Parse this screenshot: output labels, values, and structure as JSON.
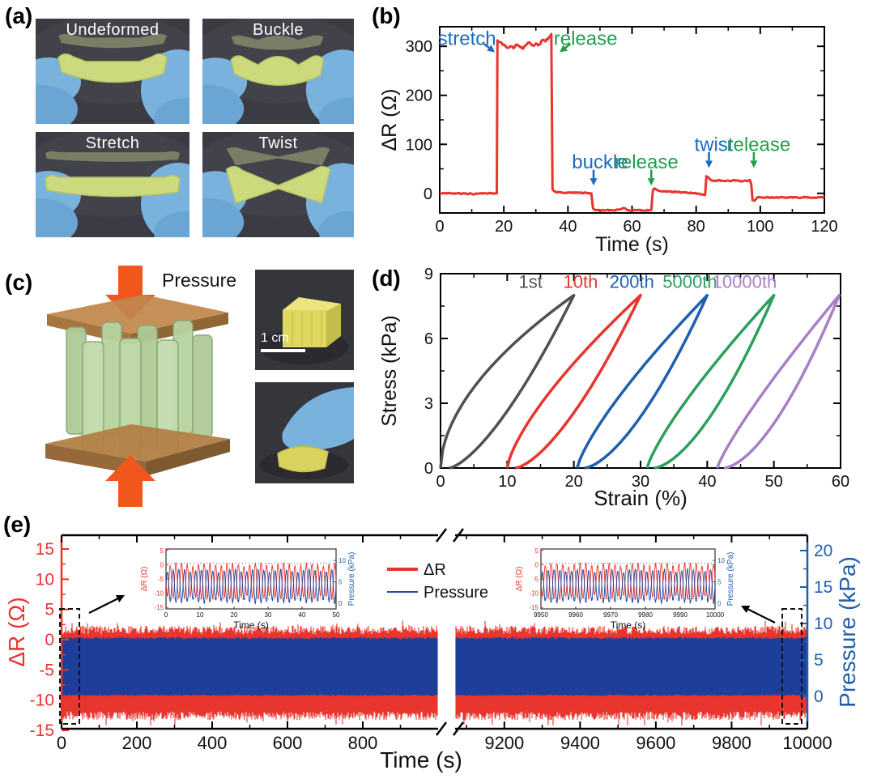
{
  "figure": {
    "panels": {
      "a": {
        "label": "(a)",
        "photos": [
          {
            "caption": "Undeformed",
            "variant": "undeformed"
          },
          {
            "caption": "Buckle",
            "variant": "buckle"
          },
          {
            "caption": "Stretch",
            "variant": "stretch"
          },
          {
            "caption": "Twist",
            "variant": "twist"
          }
        ]
      },
      "b": {
        "label": "(b)"
      },
      "c": {
        "label": "(c)",
        "pressure_label": "Pressure",
        "scale_bar": "1 cm"
      },
      "d": {
        "label": "(d)"
      },
      "e": {
        "label": "(e)"
      }
    }
  },
  "chart_data": [
    {
      "id": "b",
      "type": "line",
      "xlabel": "Time (s)",
      "ylabel": "ΔR (Ω)",
      "xlim": [
        0,
        120
      ],
      "ylim": [
        -40,
        340
      ],
      "xticks": [
        0,
        20,
        40,
        60,
        80,
        100,
        120
      ],
      "xminor": 10,
      "yticks": [
        0,
        100,
        200,
        300
      ],
      "yminor": 50,
      "series": [
        {
          "name": "ΔR",
          "color": "#e8352e",
          "width": 3,
          "noise": 1.1,
          "points": [
            [
              0,
              0
            ],
            [
              5,
              0
            ],
            [
              10,
              -1
            ],
            [
              15,
              0
            ],
            [
              17.8,
              0
            ],
            [
              18,
              312
            ],
            [
              19,
              308
            ],
            [
              20,
              303
            ],
            [
              21,
              297
            ],
            [
              22,
              300
            ],
            [
              23,
              296
            ],
            [
              24,
              304
            ],
            [
              25,
              299
            ],
            [
              26,
              295
            ],
            [
              27,
              303
            ],
            [
              28,
              308
            ],
            [
              29,
              302
            ],
            [
              30,
              306
            ],
            [
              31,
              303
            ],
            [
              32,
              313
            ],
            [
              33,
              310
            ],
            [
              34,
              318
            ],
            [
              34.8,
              325
            ],
            [
              35.2,
              8
            ],
            [
              36,
              3
            ],
            [
              38,
              2
            ],
            [
              40,
              1
            ],
            [
              42,
              2
            ],
            [
              44,
              1
            ],
            [
              46,
              1
            ],
            [
              47.3,
              0
            ],
            [
              47.8,
              -30
            ],
            [
              48.5,
              -34
            ],
            [
              50,
              -35
            ],
            [
              52,
              -34
            ],
            [
              54,
              -35
            ],
            [
              56,
              -33
            ],
            [
              57.5,
              -30
            ],
            [
              58.5,
              -34
            ],
            [
              60,
              -35
            ],
            [
              62,
              -34
            ],
            [
              64,
              -35
            ],
            [
              66,
              -34
            ],
            [
              66.5,
              6
            ],
            [
              67,
              10
            ],
            [
              68,
              6
            ],
            [
              69,
              4
            ],
            [
              70,
              4
            ],
            [
              72,
              3
            ],
            [
              74,
              3
            ],
            [
              76,
              2
            ],
            [
              78,
              1
            ],
            [
              80,
              0
            ],
            [
              82,
              -2
            ],
            [
              82.8,
              -3
            ],
            [
              83.2,
              35
            ],
            [
              84,
              31
            ],
            [
              85,
              26
            ],
            [
              86,
              25
            ],
            [
              87,
              27
            ],
            [
              88,
              26
            ],
            [
              89,
              25
            ],
            [
              90,
              26
            ],
            [
              91,
              25
            ],
            [
              92,
              27
            ],
            [
              93,
              26
            ],
            [
              94,
              25
            ],
            [
              95,
              26
            ],
            [
              96,
              25
            ],
            [
              96.8,
              27
            ],
            [
              97.2,
              18
            ],
            [
              97.6,
              -14
            ],
            [
              98.2,
              -15
            ],
            [
              99,
              -9
            ],
            [
              100,
              -8
            ],
            [
              102,
              -8
            ],
            [
              104,
              -9
            ],
            [
              106,
              -8
            ],
            [
              108,
              -9
            ],
            [
              110,
              -8
            ],
            [
              112,
              -9
            ],
            [
              114,
              -8
            ],
            [
              116,
              -9
            ],
            [
              118,
              -8
            ],
            [
              120,
              -8
            ]
          ]
        }
      ],
      "annotations": [
        {
          "text": "stretch",
          "color": "#1b6cbe",
          "tx": 8.5,
          "ty": 316,
          "arrow": [
            13.8,
            305,
            17.2,
            288
          ]
        },
        {
          "text": "release",
          "color": "#1fa04d",
          "tx": 45.5,
          "ty": 316,
          "arrow": [
            40.8,
            305,
            37.4,
            288
          ]
        },
        {
          "text": "buckle",
          "color": "#1b6cbe",
          "tx": 50,
          "ty": 64,
          "arrow": [
            48,
            48,
            48,
            16
          ]
        },
        {
          "text": "release",
          "color": "#1fa04d",
          "tx": 64.5,
          "ty": 64,
          "arrow": [
            66,
            48,
            66,
            16
          ]
        },
        {
          "text": "twist",
          "color": "#1b6cbe",
          "tx": 85.5,
          "ty": 100,
          "arrow": [
            84,
            84,
            84,
            52
          ]
        },
        {
          "text": "release",
          "color": "#1fa04d",
          "tx": 99.5,
          "ty": 100,
          "arrow": [
            98,
            84,
            98,
            52
          ]
        }
      ]
    },
    {
      "id": "d",
      "type": "loops",
      "xlabel": "Strain (%)",
      "ylabel": "Stress (kPa)",
      "xlim": [
        0,
        60
      ],
      "ylim": [
        0,
        9
      ],
      "xticks": [
        0,
        10,
        20,
        30,
        40,
        50,
        60
      ],
      "xminor": 5,
      "yticks": [
        0,
        3,
        6,
        9
      ],
      "yminor": 1.5,
      "peak_stress": 8,
      "series": [
        {
          "name": "1st",
          "color": "#4f4f55",
          "x0": 0,
          "x1": 20,
          "a": 0.55,
          "b": 1.45,
          "off": 1.3,
          "label_x": 13.5,
          "label_y": 8.6
        },
        {
          "name": "10th",
          "color": "#e8352e",
          "x0": 10,
          "x1": 30,
          "a": 0.72,
          "b": 1.5,
          "off": 1.2,
          "label_x": 21,
          "label_y": 8.6
        },
        {
          "name": "200th",
          "color": "#1f5fae",
          "x0": 20.5,
          "x1": 40,
          "a": 0.78,
          "b": 1.55,
          "off": 1.1,
          "label_x": 28.7,
          "label_y": 8.6
        },
        {
          "name": "5000th",
          "color": "#2ba05e",
          "x0": 31,
          "x1": 50,
          "a": 0.8,
          "b": 1.6,
          "off": 1.0,
          "label_x": 37.4,
          "label_y": 8.6
        },
        {
          "name": "10000th",
          "color": "#a77fc8",
          "x0": 41.5,
          "x1": 59.8,
          "a": 0.85,
          "b": 1.62,
          "off": 1.0,
          "label_x": 45.6,
          "label_y": 8.6
        }
      ]
    },
    {
      "id": "e",
      "type": "cyclic-broken",
      "xlabel": "Time (s)",
      "ylabel_left": "ΔR (Ω)",
      "ylabel_right": "Pressure (kPa)",
      "left_ticks": [
        0,
        200,
        400,
        600,
        800
      ],
      "left_minor": 100,
      "left_range": [
        0,
        1000
      ],
      "right_ticks": [
        9200,
        9400,
        9600,
        9800,
        10000
      ],
      "right_minor": 100,
      "right_range": [
        9070,
        10000
      ],
      "yticks_left": [
        -15,
        -10,
        -5,
        0,
        5,
        10,
        15
      ],
      "yminor_left": 2.5,
      "yticks_right": [
        0,
        5,
        10,
        15,
        20
      ],
      "yminor_right": 2.5,
      "red_band": [
        1.0,
        -12.0
      ],
      "pressure_band": [
        0,
        8
      ],
      "colors": {
        "red": "#e8352e",
        "navy": "#1d3f9b",
        "legend_blue": "#2b4aa5"
      },
      "legend": [
        {
          "label": "ΔR",
          "color": "#e8352e"
        },
        {
          "label": "Pressure",
          "color": "#2b4aa5"
        }
      ]
    },
    {
      "id": "e-inset1",
      "type": "wave-inset",
      "xlabel": "Time (s)",
      "ylabel_left": "ΔR (Ω)",
      "ylabel_right": "Pressure (kPa)",
      "xlim": [
        0,
        50
      ],
      "xticks": [
        0,
        10,
        20,
        30,
        40,
        50
      ],
      "yticks_left": [
        5,
        0,
        -5,
        -10,
        -15
      ],
      "yticks_right": [
        10,
        5,
        0
      ],
      "period": 1.667,
      "red_mid": -5.75,
      "red_amp": 6.2,
      "press_mid": 4,
      "press_amp": 3.9,
      "beat": 7.7
    },
    {
      "id": "e-inset2",
      "type": "wave-inset",
      "xlabel": "Time (s)",
      "ylabel_left": "ΔR (Ω)",
      "ylabel_right": "Pressure (kPa)",
      "xlim": [
        9950,
        10000
      ],
      "xticks": [
        9950,
        9960,
        9970,
        9980,
        9990,
        10000
      ],
      "yticks_left": [
        5,
        0,
        -5,
        -10,
        -15
      ],
      "yticks_right": [
        10,
        5,
        0
      ],
      "period": 1.667,
      "red_mid": -5.75,
      "red_amp": 6.2,
      "press_mid": 4,
      "press_amp": 3.9,
      "beat": 7.7
    }
  ]
}
